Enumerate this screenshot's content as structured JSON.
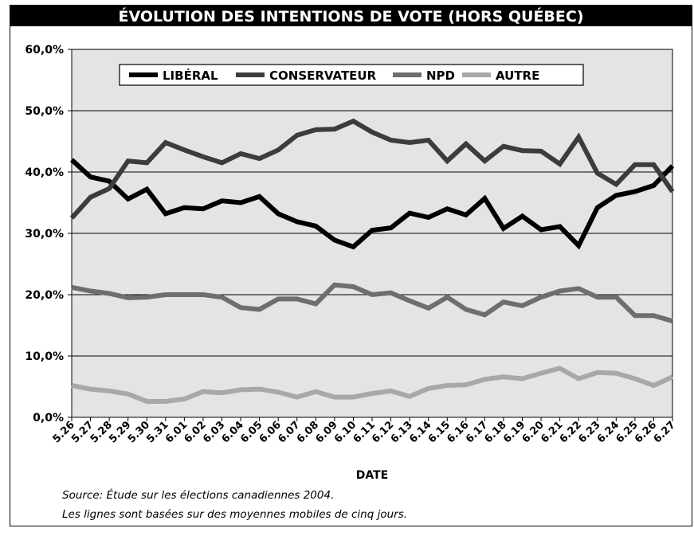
{
  "chart_data": {
    "type": "line",
    "title": "ÉVOLUTION DES INTENTIONS DE VOTE (HORS QUÉBEC)",
    "xlabel": "DATE",
    "ylabel": "",
    "ylim": [
      0,
      60
    ],
    "yticks": [
      "0,0%",
      "10,0%",
      "20,0%",
      "30,0%",
      "40,0%",
      "50,0%",
      "60,0%"
    ],
    "grid": true,
    "legend_position": "top-left",
    "categories": [
      "5.26",
      "5.27",
      "5.28",
      "5.29",
      "5.30",
      "5.31",
      "6.01",
      "6.02",
      "6.03",
      "6.04",
      "6.05",
      "6.06",
      "6.07",
      "6.08",
      "6.09",
      "6.10",
      "6.11",
      "6.12",
      "6.13",
      "6.14",
      "6.15",
      "6.16",
      "6.17",
      "6.18",
      "6.19",
      "6.20",
      "6.21",
      "6.22",
      "6.23",
      "6.24",
      "6.25",
      "6.26",
      "6.27"
    ],
    "series": [
      {
        "name": "LIBÉRAL",
        "color": "#000000",
        "values": [
          42.0,
          39.2,
          38.5,
          35.6,
          37.2,
          33.2,
          34.2,
          34.0,
          35.3,
          35.0,
          36.0,
          33.2,
          31.9,
          31.2,
          28.9,
          27.8,
          30.5,
          30.9,
          33.3,
          32.6,
          34.0,
          33.0,
          35.7,
          30.8,
          32.8,
          30.6,
          31.1,
          28.0,
          34.2,
          36.2,
          36.8,
          37.8,
          41.0
        ]
      },
      {
        "name": "CONSERVATEUR",
        "color": "#3c3c3c",
        "values": [
          32.5,
          35.9,
          37.3,
          41.8,
          41.5,
          44.8,
          43.6,
          42.5,
          41.5,
          43.0,
          42.2,
          43.6,
          46.0,
          46.9,
          47.0,
          48.3,
          46.5,
          45.2,
          44.8,
          45.2,
          41.8,
          44.6,
          41.8,
          44.2,
          43.5,
          43.4,
          41.3,
          45.7,
          39.8,
          38.0,
          41.2,
          41.2,
          36.8
        ]
      },
      {
        "name": "NPD",
        "color": "#6e6e6e",
        "values": [
          21.2,
          20.6,
          20.2,
          19.5,
          19.6,
          20.0,
          20.0,
          20.0,
          19.6,
          17.9,
          17.6,
          19.3,
          19.3,
          18.5,
          21.6,
          21.3,
          20.0,
          20.3,
          19.0,
          17.8,
          19.6,
          17.6,
          16.7,
          18.8,
          18.2,
          19.6,
          20.6,
          21.0,
          19.6,
          19.6,
          16.6,
          16.6,
          15.7
        ]
      },
      {
        "name": "AUTRE",
        "color": "#a8a8a8",
        "values": [
          5.2,
          4.6,
          4.3,
          3.8,
          2.6,
          2.6,
          3.0,
          4.2,
          4.0,
          4.5,
          4.6,
          4.1,
          3.3,
          4.2,
          3.3,
          3.3,
          3.9,
          4.3,
          3.4,
          4.7,
          5.2,
          5.3,
          6.2,
          6.6,
          6.3,
          7.2,
          8.0,
          6.3,
          7.3,
          7.2,
          6.3,
          5.2,
          6.6
        ]
      }
    ]
  },
  "source_lines": [
    "Source:  Étude sur les élections canadiennes 2004.",
    "Les lignes sont basées sur des moyennes mobiles de cinq jours."
  ]
}
